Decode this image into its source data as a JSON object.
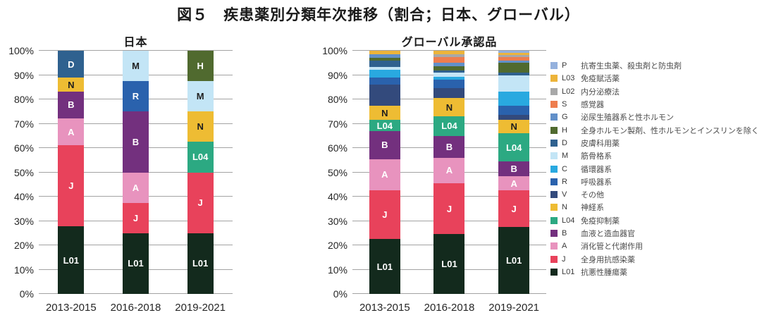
{
  "ui": {
    "main_title": "図５　疾患薬別分類年次推移（割合；日本、グローバル）",
    "y_ticks": [
      "0%",
      "10%",
      "20%",
      "30%",
      "40%",
      "50%",
      "60%",
      "70%",
      "80%",
      "90%",
      "100%"
    ],
    "dark_label_keys": [
      "N",
      "M"
    ]
  },
  "colors": {
    "L01": "#132a1d",
    "J": "#e8425b",
    "A": "#e893be",
    "B": "#73307e",
    "L04": "#2ca982",
    "N": "#eebc33",
    "V": "#334a7c",
    "R": "#2a62ad",
    "C": "#29a9e0",
    "M": "#c3e5f6",
    "D": "#2f618f",
    "H": "#506a2f",
    "G": "#6290c9",
    "S": "#ee7d4e",
    "L02": "#a8a8a8",
    "L03": "#edb43a",
    "P": "#95b1dd"
  },
  "chart_data": [
    {
      "type": "bar",
      "stacked": true,
      "title": "日本",
      "categories": [
        "2013-2015",
        "2016-2018",
        "2019-2021"
      ],
      "ylim": [
        0,
        100
      ],
      "ytick_format": "percent",
      "grid": true,
      "labeled_keys": [
        "L01",
        "J",
        "A",
        "B",
        "L04",
        "N",
        "R",
        "M",
        "D",
        "H"
      ],
      "series": [
        {
          "name": "L01",
          "values": [
            27.8,
            25.0,
            25.0
          ]
        },
        {
          "name": "J",
          "values": [
            33.3,
            12.5,
            25.0
          ]
        },
        {
          "name": "A",
          "values": [
            11.1,
            12.5,
            0
          ]
        },
        {
          "name": "B",
          "values": [
            11.1,
            25.0,
            0
          ]
        },
        {
          "name": "L04",
          "values": [
            0,
            0,
            12.5
          ]
        },
        {
          "name": "N",
          "values": [
            5.6,
            0,
            12.5
          ]
        },
        {
          "name": "R",
          "values": [
            0,
            12.5,
            0
          ]
        },
        {
          "name": "M",
          "values": [
            0,
            12.5,
            12.5
          ]
        },
        {
          "name": "D",
          "values": [
            11.1,
            0,
            0
          ]
        },
        {
          "name": "H",
          "values": [
            0,
            0,
            12.5
          ]
        }
      ]
    },
    {
      "type": "bar",
      "stacked": true,
      "title": "グローバル承認品",
      "categories": [
        "2013-2015",
        "2016-2018",
        "2019-2021"
      ],
      "ylim": [
        0,
        100
      ],
      "ytick_format": "percent",
      "grid": true,
      "labeled_keys": [
        "L01",
        "J",
        "A",
        "B",
        "L04",
        "N"
      ],
      "series": [
        {
          "name": "L01",
          "values": [
            22.5,
            24.5,
            27.5
          ]
        },
        {
          "name": "J",
          "values": [
            20.0,
            21.0,
            15.0
          ]
        },
        {
          "name": "A",
          "values": [
            13.0,
            10.5,
            6.0
          ]
        },
        {
          "name": "B",
          "values": [
            11.5,
            9.0,
            6.0
          ]
        },
        {
          "name": "L04",
          "values": [
            4.5,
            8.0,
            11.5
          ]
        },
        {
          "name": "N",
          "values": [
            6.0,
            7.6,
            5.5
          ]
        },
        {
          "name": "V",
          "values": [
            8.5,
            4.0,
            2.0
          ]
        },
        {
          "name": "R",
          "values": [
            3.0,
            3.5,
            4.0
          ]
        },
        {
          "name": "C",
          "values": [
            3.2,
            1.2,
            5.8
          ]
        },
        {
          "name": "M",
          "values": [
            1.2,
            1.7,
            6.6
          ]
        },
        {
          "name": "D",
          "values": [
            2.6,
            0.9,
            1.1
          ]
        },
        {
          "name": "H",
          "values": [
            1.1,
            1.7,
            4.1
          ]
        },
        {
          "name": "G",
          "values": [
            1.4,
            1.5,
            0.9
          ]
        },
        {
          "name": "S",
          "values": [
            0,
            2.3,
            1.4
          ]
        },
        {
          "name": "L02",
          "values": [
            0,
            1.2,
            0.9
          ]
        },
        {
          "name": "L03",
          "values": [
            1.5,
            1.4,
            0.8
          ]
        },
        {
          "name": "P",
          "values": [
            0,
            0,
            0.9
          ]
        }
      ]
    }
  ],
  "legend": [
    {
      "key": "P",
      "label": "抗寄生虫薬、殺虫剤と防虫剤"
    },
    {
      "key": "L03",
      "label": "免疫賦活薬"
    },
    {
      "key": "L02",
      "label": "内分泌療法"
    },
    {
      "key": "S",
      "label": "感覚器"
    },
    {
      "key": "G",
      "label": "泌尿生殖器系と性ホルモン"
    },
    {
      "key": "H",
      "label": "全身ホルモン製剤、性ホルモンとインスリンを除く"
    },
    {
      "key": "D",
      "label": "皮膚科用薬"
    },
    {
      "key": "M",
      "label": "筋骨格系"
    },
    {
      "key": "C",
      "label": "循環器系"
    },
    {
      "key": "R",
      "label": "呼吸器系"
    },
    {
      "key": "V",
      "label": "その他"
    },
    {
      "key": "N",
      "label": "神経系"
    },
    {
      "key": "L04",
      "label": "免疫抑制薬"
    },
    {
      "key": "B",
      "label": "血液と造血器官"
    },
    {
      "key": "A",
      "label": "消化管と代謝作用"
    },
    {
      "key": "J",
      "label": "全身用抗感染薬"
    },
    {
      "key": "L01",
      "label": "抗悪性腫瘍薬"
    }
  ]
}
